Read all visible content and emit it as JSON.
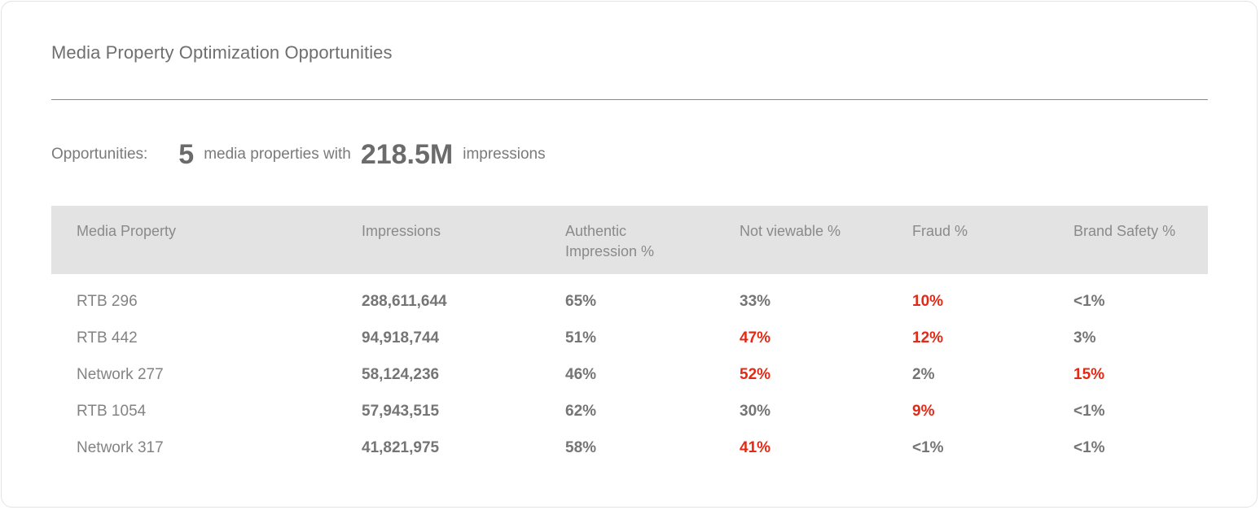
{
  "title": "Media Property Optimization Opportunities",
  "summary": {
    "label": "Opportunities:",
    "count": "5",
    "count_text": "media properties with",
    "impressions": "218.5M",
    "impressions_text": "impressions"
  },
  "colors": {
    "alert": "#e22a16",
    "header_bg": "#e3e3e3",
    "text": "#7a7a7a"
  },
  "table": {
    "headers": [
      "Media Property",
      "Impressions",
      "Authentic\nImpression %",
      "Not viewable %",
      "Fraud %",
      "Brand Safety %"
    ],
    "rows": [
      {
        "name": "RTB 296",
        "impressions": "288,611,644",
        "authentic": "65%",
        "not_viewable": "33%",
        "fraud": "10%",
        "brand_safety": "<1%",
        "alerts": {
          "not_viewable": false,
          "fraud": true,
          "brand_safety": false
        }
      },
      {
        "name": "RTB 442",
        "impressions": "94,918,744",
        "authentic": "51%",
        "not_viewable": "47%",
        "fraud": "12%",
        "brand_safety": "3%",
        "alerts": {
          "not_viewable": true,
          "fraud": true,
          "brand_safety": false
        }
      },
      {
        "name": "Network 277",
        "impressions": "58,124,236",
        "authentic": "46%",
        "not_viewable": "52%",
        "fraud": "2%",
        "brand_safety": "15%",
        "alerts": {
          "not_viewable": true,
          "fraud": false,
          "brand_safety": true
        }
      },
      {
        "name": "RTB 1054",
        "impressions": "57,943,515",
        "authentic": "62%",
        "not_viewable": "30%",
        "fraud": "9%",
        "brand_safety": "<1%",
        "alerts": {
          "not_viewable": false,
          "fraud": true,
          "brand_safety": false
        }
      },
      {
        "name": "Network 317",
        "impressions": "41,821,975",
        "authentic": "58%",
        "not_viewable": "41%",
        "fraud": "<1%",
        "brand_safety": "<1%",
        "alerts": {
          "not_viewable": true,
          "fraud": false,
          "brand_safety": false
        }
      }
    ]
  }
}
